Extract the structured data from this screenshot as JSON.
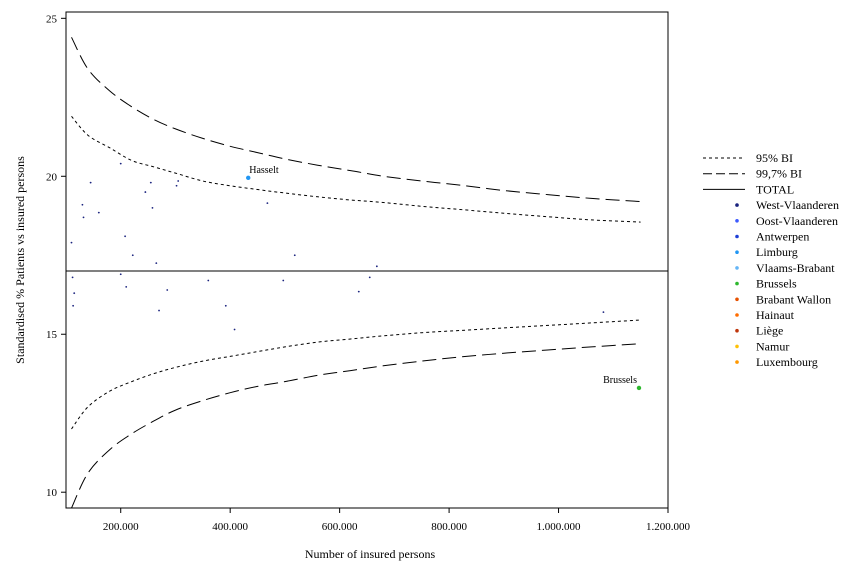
{
  "chart_data": {
    "type": "scatter",
    "title": "",
    "xlabel": "Number of insured persons",
    "ylabel": "Standardised % Patients vs insured persons",
    "xlim": [
      100000,
      1200000
    ],
    "ylim": [
      9.5,
      25.2
    ],
    "x_ticks": [
      200000,
      400000,
      600000,
      800000,
      1000000,
      1200000
    ],
    "x_tick_labels": [
      "200.000",
      "400.000",
      "600.000",
      "800.000",
      "1.000.000",
      "1.200.000"
    ],
    "y_ticks": [
      10,
      15,
      20,
      25
    ],
    "y_tick_labels": [
      "10",
      "15",
      "20",
      "25"
    ],
    "grid": false,
    "legend_position": "right",
    "total": 17.0,
    "legend": [
      {
        "label": "95% BI",
        "kind": "line",
        "dash": "short"
      },
      {
        "label": "99,7% BI",
        "kind": "line",
        "dash": "long"
      },
      {
        "label": "TOTAL",
        "kind": "line",
        "dash": "solid"
      },
      {
        "label": "West-Vlaanderen",
        "kind": "dot",
        "color": "#1a237e"
      },
      {
        "label": "Oost-Vlaanderen",
        "kind": "dot",
        "color": "#3d5afe"
      },
      {
        "label": "Antwerpen",
        "kind": "dot",
        "color": "#1e3fd6"
      },
      {
        "label": "Limburg",
        "kind": "dot",
        "color": "#2196f3"
      },
      {
        "label": "Vlaams-Brabant",
        "kind": "dot",
        "color": "#64b5f6"
      },
      {
        "label": "Brussels",
        "kind": "dot",
        "color": "#2eb82e"
      },
      {
        "label": "Brabant Wallon",
        "kind": "dot",
        "color": "#e65100"
      },
      {
        "label": "Hainaut",
        "kind": "dot",
        "color": "#ff6d00"
      },
      {
        "label": "Liège",
        "kind": "dot",
        "color": "#bf360c"
      },
      {
        "label": "Namur",
        "kind": "dot",
        "color": "#ffc107"
      },
      {
        "label": "Luxembourg",
        "kind": "dot",
        "color": "#ff9800"
      }
    ],
    "band_x": [
      110000,
      140000,
      180000,
      220000,
      260000,
      300000,
      350000,
      400000,
      450000,
      500000,
      560000,
      620000,
      680000,
      750000,
      820000,
      900000,
      980000,
      1060000,
      1150000
    ],
    "upper_95": [
      21.9,
      21.3,
      20.9,
      20.5,
      20.3,
      20.1,
      19.85,
      19.7,
      19.58,
      19.47,
      19.35,
      19.25,
      19.17,
      19.05,
      18.95,
      18.83,
      18.72,
      18.62,
      18.55
    ],
    "lower_95": [
      12.0,
      12.7,
      13.2,
      13.5,
      13.75,
      13.95,
      14.15,
      14.3,
      14.45,
      14.6,
      14.75,
      14.85,
      14.95,
      15.05,
      15.12,
      15.2,
      15.28,
      15.36,
      15.45
    ],
    "upper_997": [
      24.4,
      23.4,
      22.7,
      22.2,
      21.8,
      21.5,
      21.2,
      20.95,
      20.75,
      20.55,
      20.35,
      20.18,
      20.0,
      19.85,
      19.72,
      19.55,
      19.42,
      19.3,
      19.2
    ],
    "lower_997": [
      9.5,
      10.6,
      11.35,
      11.85,
      12.25,
      12.6,
      12.9,
      13.15,
      13.35,
      13.5,
      13.7,
      13.85,
      14.0,
      14.15,
      14.28,
      14.4,
      14.5,
      14.6,
      14.7
    ],
    "points": [
      {
        "x": 110000,
        "y": 17.9,
        "color": "#1a237e"
      },
      {
        "x": 112000,
        "y": 16.8,
        "color": "#1a237e"
      },
      {
        "x": 113000,
        "y": 15.9,
        "color": "#1a237e"
      },
      {
        "x": 115000,
        "y": 16.3,
        "color": "#1a237e"
      },
      {
        "x": 130000,
        "y": 19.1,
        "color": "#1a237e"
      },
      {
        "x": 132000,
        "y": 18.7,
        "color": "#1a237e"
      },
      {
        "x": 145000,
        "y": 19.8,
        "color": "#1a237e"
      },
      {
        "x": 160000,
        "y": 18.85,
        "color": "#1a237e"
      },
      {
        "x": 200000,
        "y": 20.4,
        "color": "#1a237e"
      },
      {
        "x": 200000,
        "y": 16.9,
        "color": "#1a237e"
      },
      {
        "x": 208000,
        "y": 18.1,
        "color": "#1a237e"
      },
      {
        "x": 210000,
        "y": 16.5,
        "color": "#1a237e"
      },
      {
        "x": 222000,
        "y": 17.5,
        "color": "#1a237e"
      },
      {
        "x": 245000,
        "y": 19.5,
        "color": "#1a237e"
      },
      {
        "x": 255000,
        "y": 19.8,
        "color": "#1a237e"
      },
      {
        "x": 258000,
        "y": 19.0,
        "color": "#1a237e"
      },
      {
        "x": 265000,
        "y": 17.25,
        "color": "#1a237e"
      },
      {
        "x": 270000,
        "y": 15.75,
        "color": "#1a237e"
      },
      {
        "x": 285000,
        "y": 16.4,
        "color": "#1a237e"
      },
      {
        "x": 302000,
        "y": 19.7,
        "color": "#1a237e"
      },
      {
        "x": 305000,
        "y": 19.85,
        "color": "#1a237e"
      },
      {
        "x": 360000,
        "y": 16.7,
        "color": "#1a237e"
      },
      {
        "x": 392000,
        "y": 15.9,
        "color": "#1a237e"
      },
      {
        "x": 408000,
        "y": 15.15,
        "color": "#1a237e"
      },
      {
        "x": 433000,
        "y": 19.95,
        "color": "#2196f3",
        "label": "Hasselt"
      },
      {
        "x": 468000,
        "y": 19.15,
        "color": "#1a237e"
      },
      {
        "x": 497000,
        "y": 16.7,
        "color": "#1a237e"
      },
      {
        "x": 518000,
        "y": 17.5,
        "color": "#1a237e"
      },
      {
        "x": 635000,
        "y": 16.35,
        "color": "#1a237e"
      },
      {
        "x": 655000,
        "y": 16.8,
        "color": "#1a237e"
      },
      {
        "x": 668000,
        "y": 17.15,
        "color": "#1a237e"
      },
      {
        "x": 1082000,
        "y": 15.7,
        "color": "#1a237e"
      },
      {
        "x": 1147000,
        "y": 13.3,
        "color": "#2eb82e",
        "label": "Brussels"
      }
    ]
  }
}
